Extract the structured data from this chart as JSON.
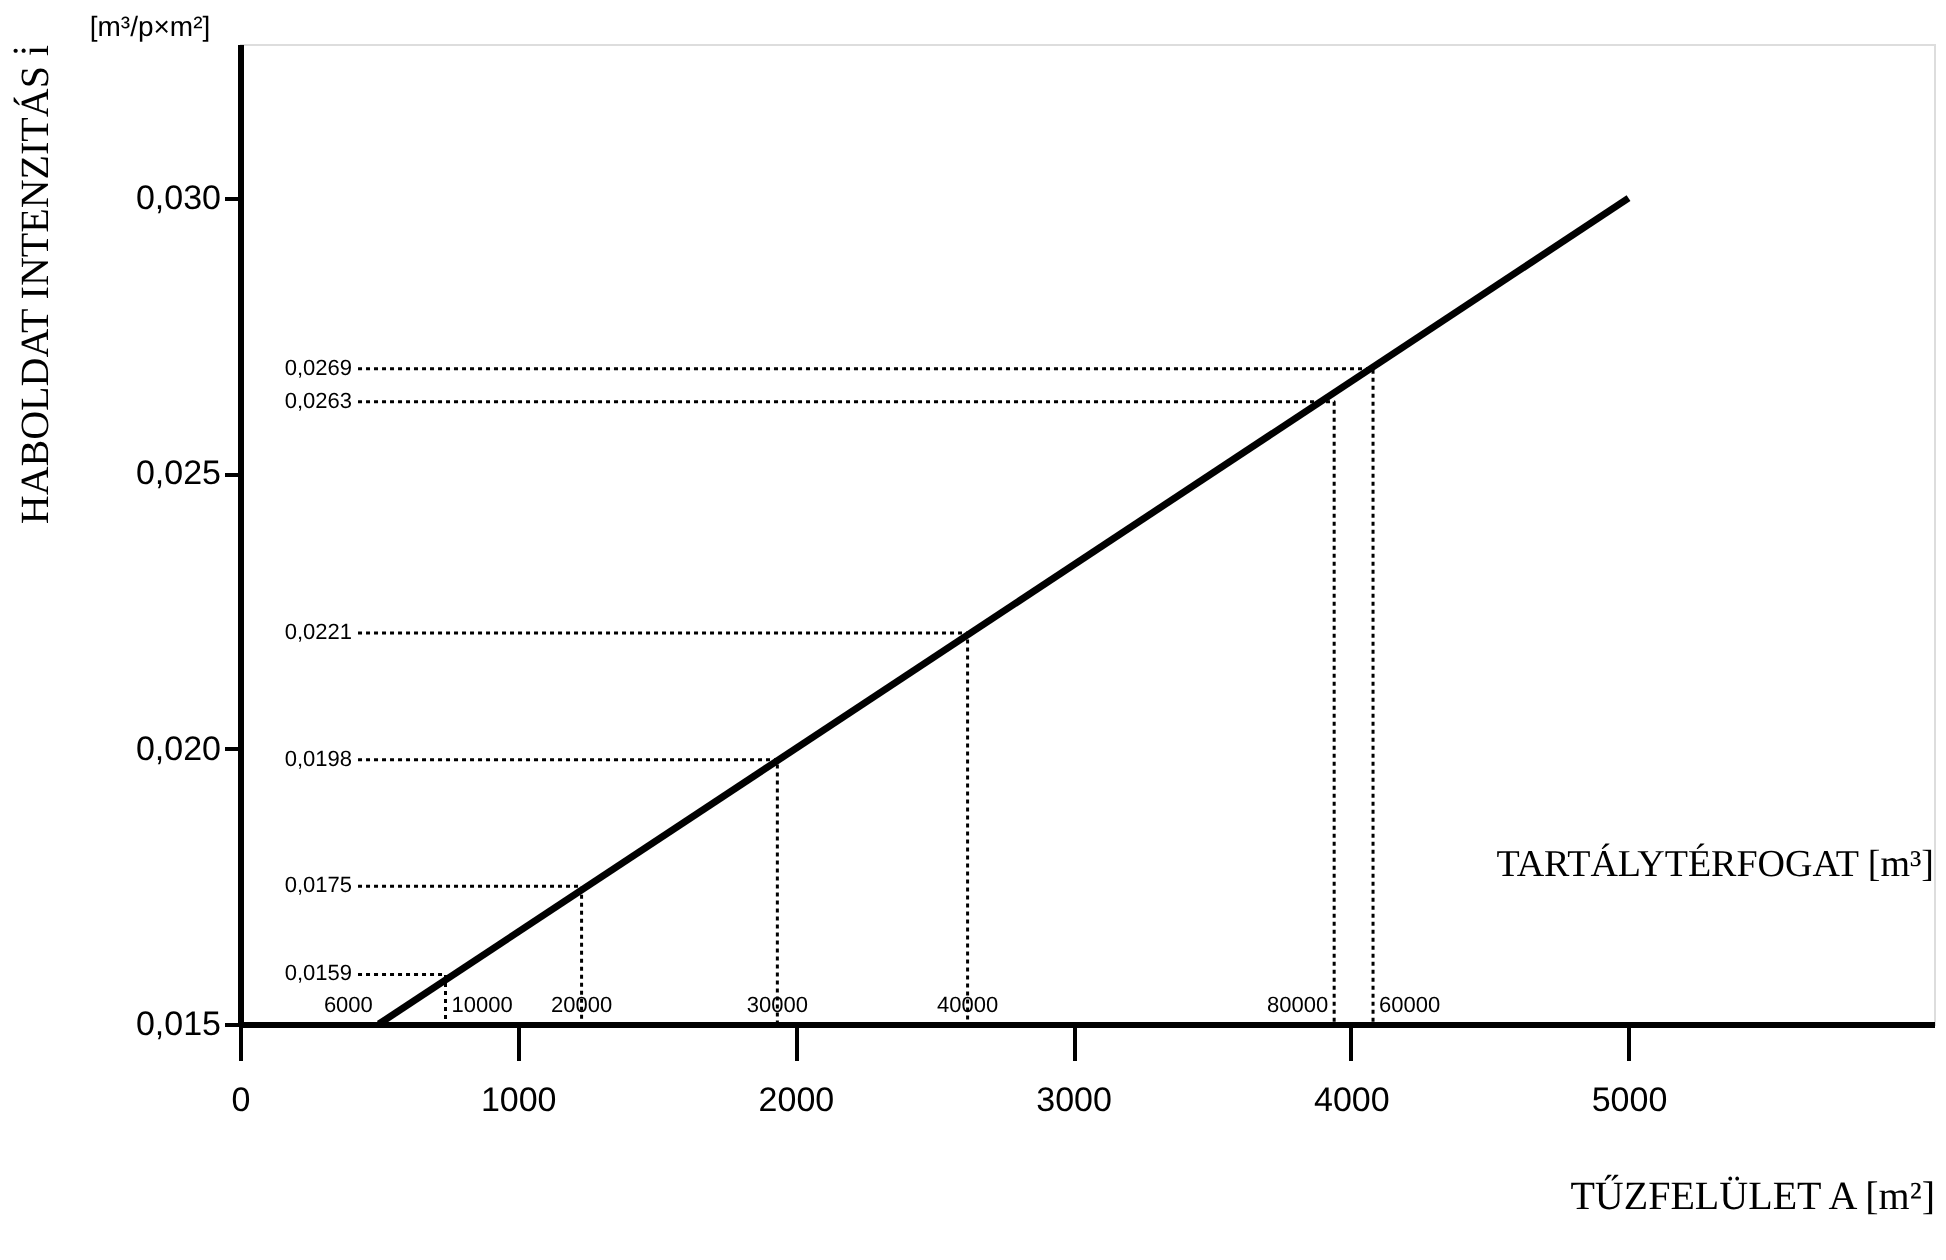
{
  "chart_data": {
    "type": "line",
    "xlabel": "TŰZFELÜLET A [m²]",
    "ylabel": "HABOLDAT INTENZITÁS i̇",
    "xlim": [
      0,
      6100
    ],
    "ylim": [
      0.015,
      0.0328
    ],
    "xticks": [
      0,
      1000,
      2000,
      3000,
      4000,
      5000
    ],
    "yticks": [
      {
        "value": 0.015,
        "label": "0,015"
      },
      {
        "value": 0.02,
        "label": "0,020"
      },
      {
        "value": 0.025,
        "label": "0,025"
      },
      {
        "value": 0.03,
        "label": "0,030"
      }
    ],
    "grid": false,
    "series": [
      {
        "color": "#000000",
        "line_style": "solid",
        "x": [
          500,
          5000
        ],
        "values": [
          0.015,
          0.03
        ]
      },
      {
        "color": "#000000",
        "line_style": "dotted",
        "x": [
          425,
          740,
          740
        ],
        "values": [
          0.0159,
          0.0159,
          0.015
        ]
      },
      {
        "color": "#000000",
        "line_style": "dotted",
        "x": [
          425,
          1230,
          1230
        ],
        "values": [
          0.0175,
          0.0175,
          0.015
        ]
      },
      {
        "color": "#000000",
        "line_style": "dotted",
        "x": [
          425,
          1935,
          1935
        ],
        "values": [
          0.0198,
          0.0198,
          0.015
        ]
      },
      {
        "color": "#000000",
        "line_style": "dotted",
        "x": [
          425,
          2620,
          2620
        ],
        "values": [
          0.0221,
          0.0221,
          0.015
        ]
      },
      {
        "color": "#000000",
        "line_style": "dotted",
        "x": [
          425,
          3940,
          3940
        ],
        "values": [
          0.0263,
          0.0263,
          0.015
        ]
      },
      {
        "color": "#000000",
        "line_style": "dotted",
        "x": [
          425,
          4080,
          4080
        ],
        "values": [
          0.0269,
          0.0269,
          0.015
        ]
      }
    ],
    "annotations": [
      "[m³/p×m²]",
      "TARTÁLYTÉRFOGAT [m³]",
      {
        "text": "0,0159",
        "x": 425,
        "y": 0.0159
      },
      {
        "text": "0,0175",
        "x": 425,
        "y": 0.0175
      },
      {
        "text": "0,0198",
        "x": 425,
        "y": 0.0198
      },
      {
        "text": "0,0221",
        "x": 425,
        "y": 0.0221
      },
      {
        "text": "0,0263",
        "x": 425,
        "y": 0.0263
      },
      {
        "text": "0,0269",
        "x": 425,
        "y": 0.0269
      },
      {
        "text": "6000",
        "x": 500,
        "y": 0.015
      },
      {
        "text": "10000",
        "x": 740,
        "y": 0.015
      },
      {
        "text": "20000",
        "x": 1230,
        "y": 0.015
      },
      {
        "text": "30000",
        "x": 1935,
        "y": 0.015
      },
      {
        "text": "40000",
        "x": 2620,
        "y": 0.015
      },
      {
        "text": "80000",
        "x": 3940,
        "y": 0.015
      },
      {
        "text": "60000",
        "x": 4080,
        "y": 0.015
      }
    ]
  }
}
